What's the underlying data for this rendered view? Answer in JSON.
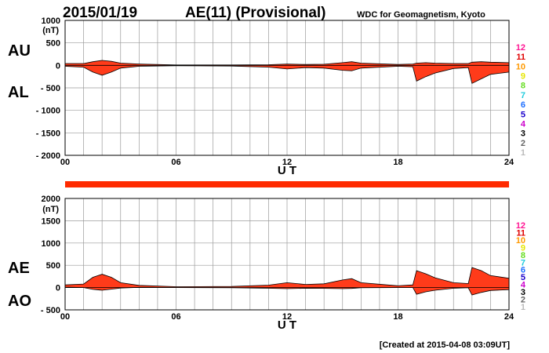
{
  "header": {
    "date": "2015/01/19",
    "title": "AE(11) (Provisional)",
    "source": "WDC for Geomagnetism, Kyoto"
  },
  "footer": {
    "created": "[Created at 2015-04-08 03:09UT]"
  },
  "colors": {
    "fill": "#ff3b1a",
    "grid": "#9a9a9a",
    "bar": "#ff2a00"
  },
  "station_scale": {
    "labels": [
      "12",
      "11",
      "10",
      "9",
      "8",
      "7",
      "6",
      "5",
      "4",
      "3",
      "2",
      "1"
    ],
    "colors": [
      "#ff1493",
      "#e00000",
      "#ff9900",
      "#e6e600",
      "#66dd22",
      "#22ccdd",
      "#1e6fff",
      "#1a00cc",
      "#cc00cc",
      "#000000",
      "#666666",
      "#bbbbbb"
    ]
  },
  "chart_data": [
    {
      "type": "area",
      "name": "AU/AL panel",
      "series_labels": [
        "AU",
        "AL"
      ],
      "unit": "(nT)",
      "xlabel": "U T",
      "xlim": [
        0,
        24
      ],
      "xticks": [
        "00",
        "06",
        "12",
        "18",
        "24"
      ],
      "ylim": [
        -2000,
        1000
      ],
      "yticks": [
        "1000",
        "500",
        "0",
        "- 500",
        "- 1000",
        "- 1500",
        "- 2000"
      ],
      "x": [
        0,
        1,
        1.5,
        2,
        2.5,
        3,
        4,
        6,
        9,
        11,
        12,
        13,
        14,
        15,
        15.5,
        16,
        18,
        18.8,
        19,
        19.5,
        20,
        21,
        21.8,
        22,
        22.5,
        23,
        24
      ],
      "upper": [
        40,
        40,
        80,
        110,
        90,
        50,
        30,
        10,
        10,
        15,
        30,
        20,
        25,
        60,
        80,
        50,
        20,
        30,
        50,
        60,
        50,
        40,
        40,
        70,
        80,
        70,
        60
      ],
      "lower": [
        -20,
        -40,
        -150,
        -220,
        -150,
        -60,
        -20,
        -10,
        -15,
        -40,
        -80,
        -50,
        -60,
        -110,
        -120,
        -60,
        -20,
        -30,
        -350,
        -250,
        -170,
        -70,
        -50,
        -400,
        -300,
        -200,
        -150
      ]
    },
    {
      "type": "area",
      "name": "AE/AO panel",
      "series_labels": [
        "AE",
        "AO"
      ],
      "unit": "(nT)",
      "xlabel": "U T",
      "xlim": [
        0,
        24
      ],
      "xticks": [
        "00",
        "06",
        "12",
        "18",
        "24"
      ],
      "ylim": [
        -500,
        2000
      ],
      "yticks": [
        "2000",
        "1500",
        "1000",
        "500",
        "0",
        "- 500"
      ],
      "x": [
        0,
        1,
        1.5,
        2,
        2.5,
        3,
        4,
        6,
        9,
        11,
        12,
        13,
        14,
        15,
        15.5,
        16,
        18,
        18.8,
        19,
        19.5,
        20,
        21,
        21.8,
        22,
        22.5,
        23,
        24
      ],
      "upper": [
        60,
        80,
        230,
        300,
        230,
        110,
        50,
        20,
        25,
        55,
        110,
        70,
        85,
        170,
        200,
        110,
        40,
        60,
        380,
        310,
        220,
        110,
        90,
        450,
        380,
        270,
        210
      ],
      "lower": [
        10,
        0,
        -40,
        -60,
        -35,
        -10,
        5,
        0,
        -3,
        -15,
        -25,
        -15,
        -17,
        -25,
        -20,
        -5,
        0,
        0,
        -150,
        -95,
        -60,
        -15,
        -5,
        -165,
        -110,
        -65,
        -45
      ]
    }
  ]
}
